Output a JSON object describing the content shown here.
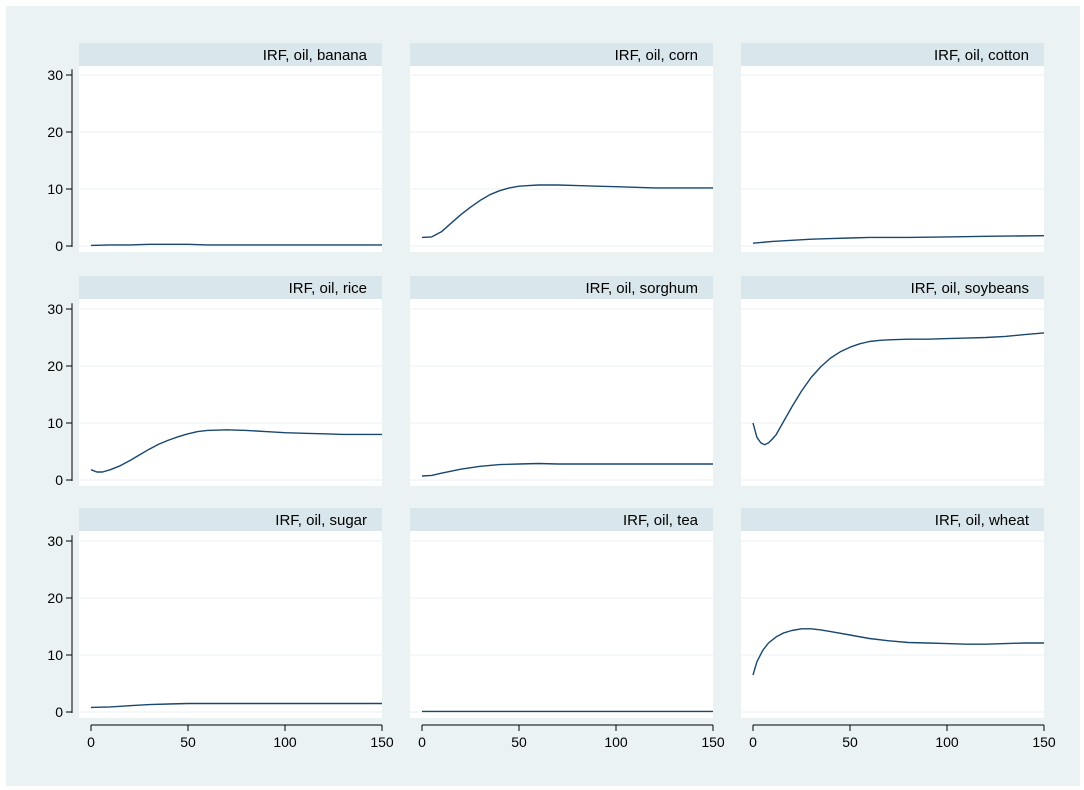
{
  "figure": {
    "colors": {
      "outer_background": "#eaf2f3",
      "plot_background": "#ffffff",
      "strip_background": "#d9e6eb",
      "line": "#1a476f",
      "grid": "#eaf2f3",
      "axis": "#000000"
    }
  },
  "chart_data": [
    {
      "type": "line",
      "title": "IRF, oil, banana",
      "xlim": [
        0,
        150
      ],
      "ylim": [
        0,
        30
      ],
      "xticks": [
        "0",
        "50",
        "100",
        "150"
      ],
      "yticks": [
        "0",
        "10",
        "20",
        "30"
      ],
      "grid": true,
      "series": [
        {
          "x": [
            0,
            10,
            20,
            30,
            40,
            50,
            60,
            80,
            100,
            120,
            150
          ],
          "y": [
            0.1,
            0.2,
            0.2,
            0.3,
            0.3,
            0.3,
            0.2,
            0.2,
            0.2,
            0.2,
            0.2
          ]
        }
      ]
    },
    {
      "type": "line",
      "title": "IRF, oil, corn",
      "xlim": [
        0,
        150
      ],
      "ylim": [
        0,
        30
      ],
      "xticks": [
        "0",
        "50",
        "100",
        "150"
      ],
      "yticks": [
        "0",
        "10",
        "20",
        "30"
      ],
      "grid": true,
      "series": [
        {
          "x": [
            0,
            5,
            10,
            15,
            20,
            25,
            30,
            35,
            40,
            45,
            50,
            55,
            60,
            70,
            80,
            90,
            100,
            110,
            120,
            130,
            140,
            150
          ],
          "y": [
            1.5,
            1.6,
            2.5,
            4.0,
            5.5,
            6.8,
            8.0,
            9.0,
            9.7,
            10.2,
            10.5,
            10.6,
            10.7,
            10.7,
            10.6,
            10.5,
            10.4,
            10.3,
            10.2,
            10.2,
            10.2,
            10.2
          ]
        }
      ]
    },
    {
      "type": "line",
      "title": "IRF, oil, cotton",
      "xlim": [
        0,
        150
      ],
      "ylim": [
        0,
        30
      ],
      "xticks": [
        "0",
        "50",
        "100",
        "150"
      ],
      "yticks": [
        "0",
        "10",
        "20",
        "30"
      ],
      "grid": true,
      "series": [
        {
          "x": [
            0,
            10,
            20,
            30,
            40,
            50,
            60,
            80,
            100,
            120,
            150
          ],
          "y": [
            0.5,
            0.8,
            1.0,
            1.2,
            1.3,
            1.4,
            1.5,
            1.5,
            1.6,
            1.7,
            1.8
          ]
        }
      ]
    },
    {
      "type": "line",
      "title": "IRF, oil, rice",
      "xlim": [
        0,
        150
      ],
      "ylim": [
        0,
        30
      ],
      "xticks": [
        "0",
        "50",
        "100",
        "150"
      ],
      "yticks": [
        "0",
        "10",
        "20",
        "30"
      ],
      "grid": true,
      "series": [
        {
          "x": [
            0,
            3,
            6,
            10,
            15,
            20,
            25,
            30,
            35,
            40,
            45,
            50,
            55,
            60,
            70,
            80,
            90,
            100,
            110,
            120,
            130,
            140,
            150
          ],
          "y": [
            1.8,
            1.4,
            1.4,
            1.8,
            2.5,
            3.4,
            4.4,
            5.4,
            6.3,
            7.0,
            7.6,
            8.1,
            8.5,
            8.7,
            8.8,
            8.7,
            8.5,
            8.3,
            8.2,
            8.1,
            8.0,
            8.0,
            8.0
          ]
        }
      ]
    },
    {
      "type": "line",
      "title": "IRF, oil, sorghum",
      "xlim": [
        0,
        150
      ],
      "ylim": [
        0,
        30
      ],
      "xticks": [
        "0",
        "50",
        "100",
        "150"
      ],
      "yticks": [
        "0",
        "10",
        "20",
        "30"
      ],
      "grid": true,
      "series": [
        {
          "x": [
            0,
            5,
            10,
            20,
            30,
            40,
            50,
            60,
            70,
            80,
            100,
            120,
            150
          ],
          "y": [
            0.7,
            0.8,
            1.2,
            1.9,
            2.4,
            2.7,
            2.8,
            2.9,
            2.8,
            2.8,
            2.8,
            2.8,
            2.8
          ]
        }
      ]
    },
    {
      "type": "line",
      "title": "IRF, oil, soybeans",
      "xlim": [
        0,
        150
      ],
      "ylim": [
        0,
        30
      ],
      "xticks": [
        "0",
        "50",
        "100",
        "150"
      ],
      "yticks": [
        "0",
        "10",
        "20",
        "30"
      ],
      "grid": true,
      "series": [
        {
          "x": [
            0,
            2,
            4,
            6,
            8,
            10,
            12,
            15,
            20,
            25,
            30,
            35,
            40,
            45,
            50,
            55,
            60,
            65,
            70,
            80,
            90,
            100,
            110,
            120,
            130,
            140,
            150
          ],
          "y": [
            10.0,
            7.5,
            6.5,
            6.2,
            6.5,
            7.2,
            8.0,
            9.8,
            12.8,
            15.6,
            18.0,
            19.9,
            21.4,
            22.5,
            23.3,
            23.9,
            24.3,
            24.5,
            24.6,
            24.7,
            24.7,
            24.8,
            24.9,
            25.0,
            25.2,
            25.5,
            25.8
          ]
        }
      ]
    },
    {
      "type": "line",
      "title": "IRF, oil, sugar",
      "xlim": [
        0,
        150
      ],
      "ylim": [
        0,
        30
      ],
      "xticks": [
        "0",
        "50",
        "100",
        "150"
      ],
      "yticks": [
        "0",
        "10",
        "20",
        "30"
      ],
      "grid": true,
      "series": [
        {
          "x": [
            0,
            10,
            20,
            30,
            40,
            50,
            60,
            80,
            100,
            120,
            150
          ],
          "y": [
            0.8,
            0.9,
            1.1,
            1.3,
            1.4,
            1.5,
            1.5,
            1.5,
            1.5,
            1.5,
            1.5
          ]
        }
      ]
    },
    {
      "type": "line",
      "title": "IRF, oil, tea",
      "xlim": [
        0,
        150
      ],
      "ylim": [
        0,
        30
      ],
      "xticks": [
        "0",
        "50",
        "100",
        "150"
      ],
      "yticks": [
        "0",
        "10",
        "20",
        "30"
      ],
      "grid": true,
      "series": [
        {
          "x": [
            0,
            50,
            100,
            150
          ],
          "y": [
            0.1,
            0.1,
            0.1,
            0.1
          ]
        }
      ]
    },
    {
      "type": "line",
      "title": "IRF, oil, wheat",
      "xlim": [
        0,
        150
      ],
      "ylim": [
        0,
        30
      ],
      "xticks": [
        "0",
        "50",
        "100",
        "150"
      ],
      "yticks": [
        "0",
        "10",
        "20",
        "30"
      ],
      "grid": true,
      "series": [
        {
          "x": [
            0,
            2,
            5,
            8,
            12,
            16,
            20,
            25,
            30,
            35,
            40,
            50,
            60,
            70,
            80,
            90,
            100,
            110,
            120,
            130,
            140,
            150
          ],
          "y": [
            6.5,
            8.8,
            10.8,
            12.1,
            13.2,
            13.9,
            14.3,
            14.6,
            14.6,
            14.4,
            14.1,
            13.5,
            12.9,
            12.5,
            12.2,
            12.1,
            12.0,
            11.9,
            11.9,
            12.0,
            12.1,
            12.1
          ]
        }
      ]
    }
  ]
}
